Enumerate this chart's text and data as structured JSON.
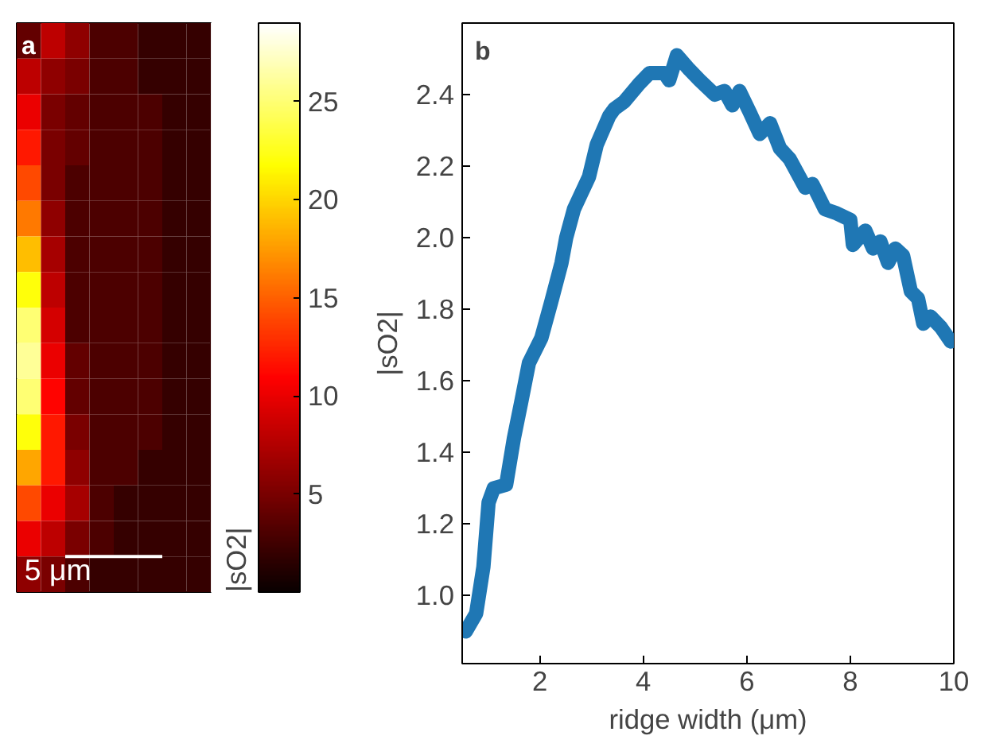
{
  "chart_data": [
    {
      "type": "heatmap",
      "clabel": "|sO2|",
      "clim": [
        0,
        29
      ],
      "cticks": [
        5,
        10,
        15,
        20,
        25
      ],
      "tick_labels": false,
      "categories": [
        null,
        null,
        null,
        null,
        null,
        null,
        null,
        null
      ],
      "y_categories": [
        null,
        null,
        null,
        null,
        null,
        null,
        null,
        null,
        null,
        null,
        null,
        null,
        null,
        null,
        null,
        null
      ],
      "cells": [
        [
          4,
          8,
          6,
          3,
          3,
          2,
          2,
          2
        ],
        [
          8,
          6,
          5,
          3,
          3,
          2,
          2,
          2
        ],
        [
          10,
          5,
          4,
          3,
          3,
          3,
          2,
          2
        ],
        [
          12,
          5,
          4,
          3,
          3,
          3,
          2,
          2
        ],
        [
          14,
          5,
          3,
          3,
          3,
          3,
          2,
          2
        ],
        [
          16,
          6,
          3,
          3,
          3,
          3,
          2,
          2
        ],
        [
          19,
          7,
          3,
          3,
          3,
          3,
          2,
          2
        ],
        [
          22,
          8,
          3,
          3,
          3,
          3,
          2,
          2
        ],
        [
          25,
          9,
          3,
          3,
          3,
          3,
          2,
          2
        ],
        [
          26,
          10,
          4,
          3,
          3,
          3,
          2,
          2
        ],
        [
          25,
          11,
          4,
          3,
          3,
          3,
          2,
          2
        ],
        [
          22,
          12,
          5,
          3,
          3,
          3,
          2,
          2
        ],
        [
          18,
          12,
          6,
          3,
          3,
          2,
          2,
          2
        ],
        [
          14,
          10,
          7,
          3,
          2,
          2,
          2,
          2
        ],
        [
          10,
          8,
          5,
          3,
          2,
          2,
          2,
          2
        ],
        [
          6,
          5,
          3,
          2,
          2,
          2,
          2,
          2
        ]
      ],
      "annotations": [
        "a",
        "5 μm"
      ]
    },
    {
      "type": "line",
      "xlabel": "ridge width (μm)",
      "ylabel": "|sO2|",
      "xlim": [
        0.5,
        10
      ],
      "ylim": [
        0.81,
        2.6
      ],
      "xticks": [
        2,
        4,
        6,
        8,
        10
      ],
      "yticks": [
        {
          "value": 1,
          "label": "1.0"
        },
        1.2,
        1.4,
        1.6,
        1.8,
        {
          "value": 2,
          "label": "2.0"
        },
        2.2,
        2.4
      ],
      "grid": false,
      "annotations": [
        "b"
      ],
      "series": [
        {
          "color": "#1f77b4",
          "x": [
            0.57,
            0.77,
            0.91,
            1.01,
            1.11,
            1.35,
            1.5,
            1.64,
            1.79,
            2.03,
            2.22,
            2.42,
            2.51,
            2.66,
            2.95,
            3.1,
            3.34,
            3.44,
            3.63,
            3.92,
            4.12,
            4.41,
            4.5,
            4.65,
            4.89,
            5.09,
            5.38,
            5.57,
            5.72,
            5.86,
            6.06,
            6.25,
            6.45,
            6.64,
            6.83,
            7.13,
            7.27,
            7.51,
            7.71,
            8.0,
            8.05,
            8.29,
            8.44,
            8.58,
            8.73,
            8.87,
            9.02,
            9.17,
            9.31,
            9.41,
            9.55,
            9.75,
            9.94
          ],
          "values": [
            0.9,
            0.95,
            1.08,
            1.26,
            1.3,
            1.31,
            1.44,
            1.54,
            1.65,
            1.72,
            1.82,
            1.93,
            2.0,
            2.08,
            2.17,
            2.26,
            2.34,
            2.36,
            2.38,
            2.43,
            2.46,
            2.46,
            2.44,
            2.51,
            2.47,
            2.44,
            2.4,
            2.41,
            2.37,
            2.41,
            2.35,
            2.29,
            2.32,
            2.25,
            2.22,
            2.14,
            2.15,
            2.08,
            2.07,
            2.05,
            1.98,
            2.02,
            1.97,
            1.99,
            1.93,
            1.97,
            1.95,
            1.85,
            1.83,
            1.76,
            1.78,
            1.75,
            1.71
          ]
        }
      ]
    }
  ]
}
